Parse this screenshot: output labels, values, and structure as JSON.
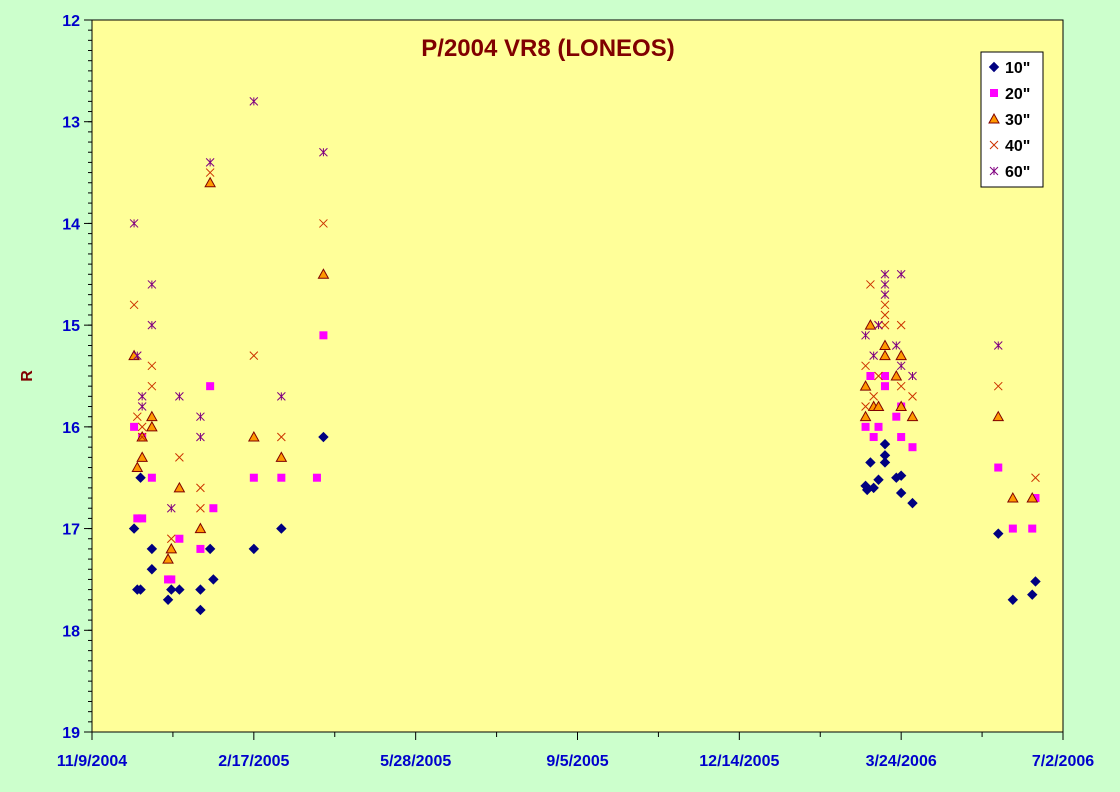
{
  "chart_data": {
    "type": "scatter",
    "title": "P/2004 VR8 (LONEOS)",
    "ylabel": "R",
    "xlabel": "",
    "x_axis": {
      "type": "date",
      "range": [
        "2004-11-09",
        "2006-07-02"
      ],
      "tick_labels": [
        {
          "date": "2004-11-09",
          "label": "11/9/2004"
        },
        {
          "date": "2005-02-17",
          "label": "2/17/2005"
        },
        {
          "date": "2005-05-28",
          "label": "5/28/2005"
        },
        {
          "date": "2005-09-05",
          "label": "9/5/2005"
        },
        {
          "date": "2005-12-14",
          "label": "12/14/2005"
        },
        {
          "date": "2006-03-24",
          "label": "3/24/2006"
        },
        {
          "date": "2006-07-02",
          "label": "7/2/2006"
        }
      ]
    },
    "y_axis": {
      "range": [
        12,
        19
      ],
      "reversed": true,
      "major_ticks": [
        12,
        13,
        14,
        15,
        16,
        17,
        18,
        19
      ],
      "minor_step": 0.1
    },
    "grid": false,
    "legend_position": "top-right",
    "plot_background": "#ffff99",
    "page_background": "#ccffcc",
    "series": [
      {
        "name": "10\"",
        "marker": "diamond",
        "color": "#000080",
        "points": [
          {
            "x": "2004-12-05",
            "y": 17.0
          },
          {
            "x": "2004-12-07",
            "y": 17.6
          },
          {
            "x": "2004-12-09",
            "y": 17.6
          },
          {
            "x": "2004-12-09",
            "y": 16.5
          },
          {
            "x": "2004-12-16",
            "y": 17.2
          },
          {
            "x": "2004-12-16",
            "y": 17.4
          },
          {
            "x": "2004-12-26",
            "y": 17.7
          },
          {
            "x": "2004-12-28",
            "y": 17.6
          },
          {
            "x": "2005-01-02",
            "y": 17.6
          },
          {
            "x": "2005-01-15",
            "y": 17.6
          },
          {
            "x": "2005-01-15",
            "y": 17.8
          },
          {
            "x": "2005-01-21",
            "y": 17.2
          },
          {
            "x": "2005-01-23",
            "y": 17.5
          },
          {
            "x": "2005-02-17",
            "y": 17.2
          },
          {
            "x": "2005-03-06",
            "y": 17.0
          },
          {
            "x": "2005-04-01",
            "y": 16.1
          },
          {
            "x": "2006-03-02",
            "y": 16.58
          },
          {
            "x": "2006-03-03",
            "y": 16.62
          },
          {
            "x": "2006-03-05",
            "y": 16.35
          },
          {
            "x": "2006-03-07",
            "y": 16.6
          },
          {
            "x": "2006-03-10",
            "y": 16.52
          },
          {
            "x": "2006-03-14",
            "y": 16.28
          },
          {
            "x": "2006-03-14",
            "y": 16.35
          },
          {
            "x": "2006-03-14",
            "y": 16.17
          },
          {
            "x": "2006-03-21",
            "y": 16.5
          },
          {
            "x": "2006-03-24",
            "y": 16.48
          },
          {
            "x": "2006-03-24",
            "y": 16.65
          },
          {
            "x": "2006-03-31",
            "y": 16.75
          },
          {
            "x": "2006-05-23",
            "y": 17.05
          },
          {
            "x": "2006-06-01",
            "y": 17.7
          },
          {
            "x": "2006-06-13",
            "y": 17.65
          },
          {
            "x": "2006-06-15",
            "y": 17.52
          }
        ]
      },
      {
        "name": "20\"",
        "marker": "square",
        "color": "#ff00ff",
        "points": [
          {
            "x": "2004-12-05",
            "y": 16.0
          },
          {
            "x": "2004-12-07",
            "y": 16.9
          },
          {
            "x": "2004-12-10",
            "y": 16.9
          },
          {
            "x": "2004-12-10",
            "y": 16.1
          },
          {
            "x": "2004-12-16",
            "y": 16.5
          },
          {
            "x": "2004-12-26",
            "y": 17.5
          },
          {
            "x": "2004-12-28",
            "y": 17.5
          },
          {
            "x": "2005-01-02",
            "y": 17.1
          },
          {
            "x": "2005-01-15",
            "y": 17.2
          },
          {
            "x": "2005-01-21",
            "y": 15.6
          },
          {
            "x": "2005-01-23",
            "y": 16.8
          },
          {
            "x": "2005-02-17",
            "y": 16.5
          },
          {
            "x": "2005-03-06",
            "y": 16.5
          },
          {
            "x": "2005-03-28",
            "y": 16.5
          },
          {
            "x": "2005-04-01",
            "y": 15.1
          },
          {
            "x": "2006-03-02",
            "y": 16.0
          },
          {
            "x": "2006-03-05",
            "y": 15.5
          },
          {
            "x": "2006-03-07",
            "y": 16.1
          },
          {
            "x": "2006-03-10",
            "y": 16.0
          },
          {
            "x": "2006-03-14",
            "y": 15.6
          },
          {
            "x": "2006-03-14",
            "y": 15.5
          },
          {
            "x": "2006-03-21",
            "y": 15.9
          },
          {
            "x": "2006-03-24",
            "y": 15.8
          },
          {
            "x": "2006-03-24",
            "y": 16.1
          },
          {
            "x": "2006-03-31",
            "y": 16.2
          },
          {
            "x": "2006-05-23",
            "y": 16.4
          },
          {
            "x": "2006-06-01",
            "y": 17.0
          },
          {
            "x": "2006-06-13",
            "y": 17.0
          },
          {
            "x": "2006-06-15",
            "y": 16.7
          }
        ]
      },
      {
        "name": "30\"",
        "marker": "triangle",
        "color": "#ff9900",
        "points": [
          {
            "x": "2004-12-05",
            "y": 15.3
          },
          {
            "x": "2004-12-07",
            "y": 16.4
          },
          {
            "x": "2004-12-10",
            "y": 16.3
          },
          {
            "x": "2004-12-10",
            "y": 16.1
          },
          {
            "x": "2004-12-16",
            "y": 15.9
          },
          {
            "x": "2004-12-16",
            "y": 16.0
          },
          {
            "x": "2004-12-26",
            "y": 17.3
          },
          {
            "x": "2004-12-28",
            "y": 17.2
          },
          {
            "x": "2005-01-02",
            "y": 16.6
          },
          {
            "x": "2005-01-15",
            "y": 17.0
          },
          {
            "x": "2005-01-21",
            "y": 13.6
          },
          {
            "x": "2005-02-17",
            "y": 16.1
          },
          {
            "x": "2005-03-06",
            "y": 16.3
          },
          {
            "x": "2005-04-01",
            "y": 14.5
          },
          {
            "x": "2006-03-02",
            "y": 15.6
          },
          {
            "x": "2006-03-02",
            "y": 15.9
          },
          {
            "x": "2006-03-05",
            "y": 15.0
          },
          {
            "x": "2006-03-07",
            "y": 15.8
          },
          {
            "x": "2006-03-10",
            "y": 15.8
          },
          {
            "x": "2006-03-14",
            "y": 15.3
          },
          {
            "x": "2006-03-14",
            "y": 15.2
          },
          {
            "x": "2006-03-21",
            "y": 15.5
          },
          {
            "x": "2006-03-24",
            "y": 15.3
          },
          {
            "x": "2006-03-24",
            "y": 15.8
          },
          {
            "x": "2006-03-31",
            "y": 15.9
          },
          {
            "x": "2006-05-23",
            "y": 15.9
          },
          {
            "x": "2006-06-01",
            "y": 16.7
          },
          {
            "x": "2006-06-13",
            "y": 16.7
          }
        ]
      },
      {
        "name": "40\"",
        "marker": "x",
        "color": "#cc3300",
        "points": [
          {
            "x": "2004-12-05",
            "y": 14.8
          },
          {
            "x": "2004-12-07",
            "y": 15.9
          },
          {
            "x": "2004-12-10",
            "y": 16.0
          },
          {
            "x": "2004-12-10",
            "y": 16.1
          },
          {
            "x": "2004-12-16",
            "y": 15.6
          },
          {
            "x": "2004-12-16",
            "y": 15.4
          },
          {
            "x": "2004-12-28",
            "y": 17.1
          },
          {
            "x": "2005-01-02",
            "y": 16.3
          },
          {
            "x": "2005-01-15",
            "y": 16.8
          },
          {
            "x": "2005-01-15",
            "y": 16.6
          },
          {
            "x": "2005-01-21",
            "y": 13.5
          },
          {
            "x": "2005-02-17",
            "y": 15.3
          },
          {
            "x": "2005-03-06",
            "y": 16.1
          },
          {
            "x": "2005-04-01",
            "y": 14.0
          },
          {
            "x": "2006-03-02",
            "y": 15.4
          },
          {
            "x": "2006-03-02",
            "y": 15.8
          },
          {
            "x": "2006-03-05",
            "y": 14.6
          },
          {
            "x": "2006-03-07",
            "y": 15.7
          },
          {
            "x": "2006-03-10",
            "y": 15.0
          },
          {
            "x": "2006-03-10",
            "y": 15.5
          },
          {
            "x": "2006-03-14",
            "y": 14.9
          },
          {
            "x": "2006-03-14",
            "y": 15.0
          },
          {
            "x": "2006-03-14",
            "y": 14.8
          },
          {
            "x": "2006-03-24",
            "y": 15.0
          },
          {
            "x": "2006-03-24",
            "y": 15.6
          },
          {
            "x": "2006-03-31",
            "y": 15.7
          },
          {
            "x": "2006-05-23",
            "y": 15.6
          },
          {
            "x": "2006-06-15",
            "y": 16.5
          }
        ]
      },
      {
        "name": "60\"",
        "marker": "asterisk",
        "color": "#800080",
        "points": [
          {
            "x": "2004-12-05",
            "y": 14.0
          },
          {
            "x": "2004-12-07",
            "y": 15.3
          },
          {
            "x": "2004-12-10",
            "y": 15.7
          },
          {
            "x": "2004-12-10",
            "y": 15.8
          },
          {
            "x": "2004-12-16",
            "y": 14.6
          },
          {
            "x": "2004-12-16",
            "y": 15.0
          },
          {
            "x": "2004-12-28",
            "y": 16.8
          },
          {
            "x": "2005-01-02",
            "y": 15.7
          },
          {
            "x": "2005-01-15",
            "y": 15.9
          },
          {
            "x": "2005-01-15",
            "y": 16.1
          },
          {
            "x": "2005-01-21",
            "y": 13.4
          },
          {
            "x": "2005-02-17",
            "y": 12.8
          },
          {
            "x": "2005-03-06",
            "y": 15.7
          },
          {
            "x": "2005-04-01",
            "y": 13.3
          },
          {
            "x": "2006-03-02",
            "y": 15.1
          },
          {
            "x": "2006-03-07",
            "y": 15.3
          },
          {
            "x": "2006-03-10",
            "y": 15.0
          },
          {
            "x": "2006-03-14",
            "y": 14.5
          },
          {
            "x": "2006-03-14",
            "y": 14.6
          },
          {
            "x": "2006-03-14",
            "y": 14.7
          },
          {
            "x": "2006-03-21",
            "y": 15.2
          },
          {
            "x": "2006-03-24",
            "y": 14.5
          },
          {
            "x": "2006-03-24",
            "y": 15.4
          },
          {
            "x": "2006-03-31",
            "y": 15.5
          },
          {
            "x": "2006-05-23",
            "y": 15.2
          }
        ]
      }
    ]
  }
}
